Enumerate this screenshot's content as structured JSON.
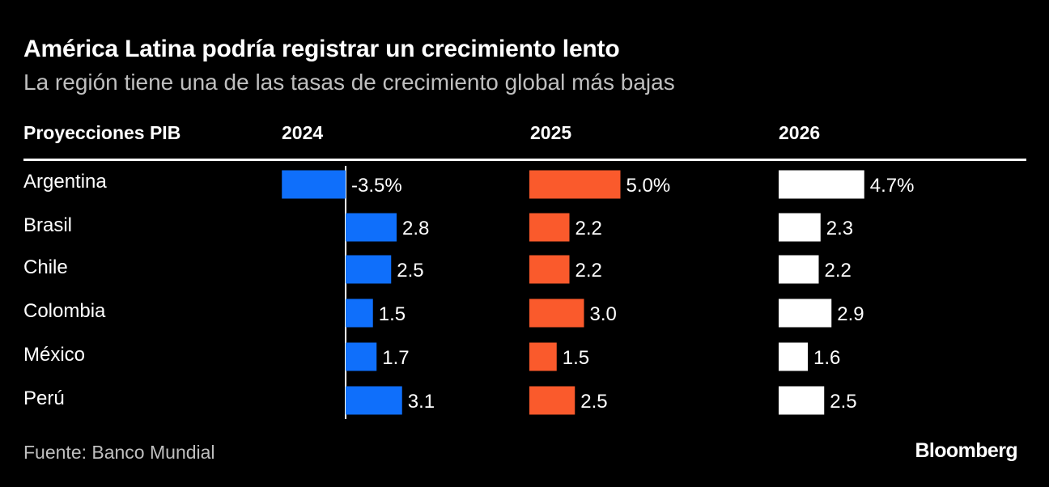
{
  "header": {
    "title": "América Latina podría registrar un crecimiento lento",
    "subtitle": "La región tiene una de las tasas de crecimiento global más bajas"
  },
  "table": {
    "row_header": "Proyecciones PIB"
  },
  "colors": {
    "background": "#000000",
    "series_2024": "#0f6ffb",
    "series_2025": "#fa5a2c",
    "series_2026": "#ffffff",
    "text_secondary": "#bfbfbf"
  },
  "chart_data": {
    "type": "bar",
    "orientation": "horizontal",
    "categories": [
      "Argentina",
      "Brasil",
      "Chile",
      "Colombia",
      "México",
      "Perú"
    ],
    "series": [
      {
        "name": "2024",
        "values": [
          -3.5,
          2.8,
          2.5,
          1.5,
          1.7,
          3.1
        ],
        "labels": [
          "-3.5%",
          "2.8",
          "2.5",
          "1.5",
          "1.7",
          "3.1"
        ]
      },
      {
        "name": "2025",
        "values": [
          5.0,
          2.2,
          2.2,
          3.0,
          1.5,
          2.5
        ],
        "labels": [
          "5.0%",
          "2.2",
          "2.2",
          "3.0",
          "1.5",
          "2.5"
        ]
      },
      {
        "name": "2026",
        "values": [
          4.7,
          2.3,
          2.2,
          2.9,
          1.6,
          2.5
        ],
        "labels": [
          "4.7%",
          "2.3",
          "2.2",
          "2.9",
          "1.6",
          "2.5"
        ]
      }
    ]
  },
  "footer": {
    "source": "Fuente: Banco Mundial",
    "brand": "Bloomberg"
  }
}
